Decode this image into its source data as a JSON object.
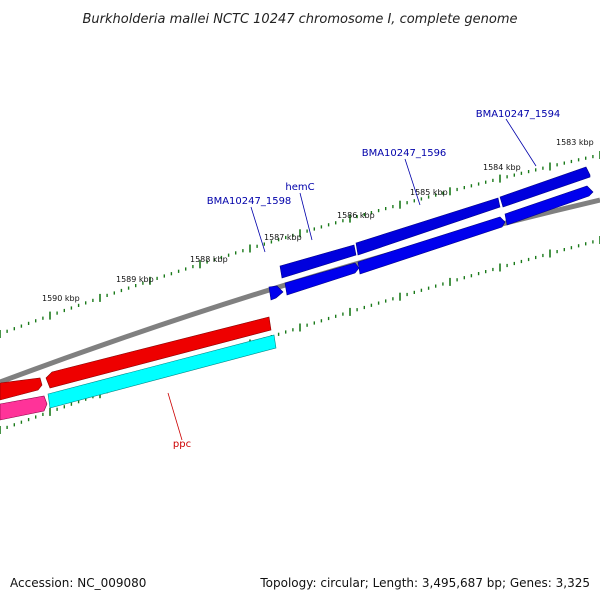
{
  "title": "Burkholderia mallei NCTC 10247 chromosome I, complete genome",
  "footer": {
    "accession": "Accession: NC_009080",
    "summary": "Topology: circular; Length: 3,495,687 bp; Genes: 3,325"
  },
  "colors": {
    "backbone": "#808080",
    "tick": "#1a7a1a",
    "forward_gene": "#0000dd",
    "cds_forward": "#0000ee",
    "reverse_gene": "#ee0000",
    "reverse_cds": "#00ffff",
    "reverse_gene_alt": "#ff3399",
    "label_forward": "#0000aa",
    "label_reverse": "#cc0000"
  },
  "ticks": [
    {
      "label": "1583 kbp"
    },
    {
      "label": "1584 kbp"
    },
    {
      "label": "1585 kbp"
    },
    {
      "label": "1586 kbp"
    },
    {
      "label": "1587 kbp"
    },
    {
      "label": "1588 kbp"
    },
    {
      "label": "1589 kbp"
    },
    {
      "label": "1590 kbp"
    }
  ],
  "genes": [
    {
      "name": "BMA10247_1594",
      "strand": "forward"
    },
    {
      "name": "BMA10247_1596",
      "strand": "forward"
    },
    {
      "name": "hemC",
      "strand": "forward"
    },
    {
      "name": "BMA10247_1598",
      "strand": "forward"
    },
    {
      "name": "ppc",
      "strand": "reverse"
    }
  ]
}
